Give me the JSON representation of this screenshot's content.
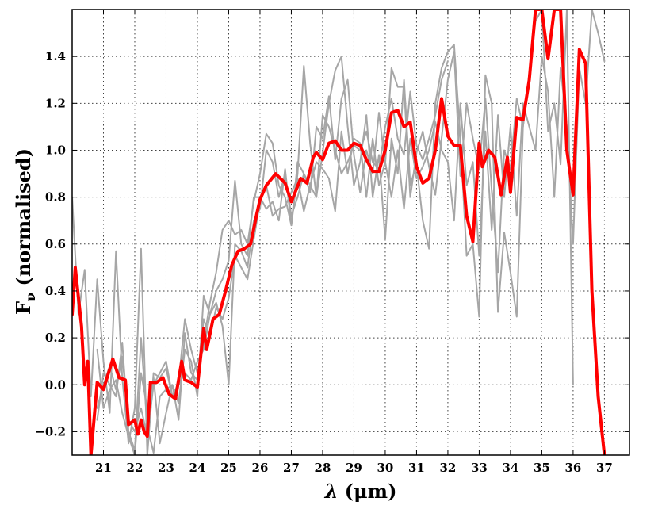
{
  "chart_data": {
    "type": "line",
    "xlabel_symbol": "λ",
    "xlabel_unit": "(μm)",
    "ylabel_main": "F",
    "ylabel_sub": "ν",
    "ylabel_rest": " (normalised)",
    "xlim": [
      20.0,
      37.8
    ],
    "ylim": [
      -0.3,
      1.6
    ],
    "xticks": [
      21,
      22,
      23,
      24,
      25,
      26,
      27,
      28,
      29,
      30,
      31,
      32,
      33,
      34,
      35,
      36,
      37
    ],
    "yticks": [
      -0.2,
      0.0,
      0.2,
      0.4,
      0.6,
      0.8,
      1.0,
      1.2,
      1.4
    ],
    "ytick_labels": [
      "−0.2",
      "0.0",
      "0.2",
      "0.4",
      "0.6",
      "0.8",
      "1.0",
      "1.2",
      "1.4"
    ],
    "grid": true,
    "colors": {
      "mean": "#ff0000",
      "individual": "#a6a6a6"
    },
    "series": [
      {
        "role": "mean",
        "x": [
          20.0,
          20.1,
          20.3,
          20.4,
          20.5,
          20.6,
          20.8,
          21.0,
          21.3,
          21.5,
          21.7,
          21.8,
          22.0,
          22.1,
          22.2,
          22.3,
          22.4,
          22.5,
          22.7,
          22.9,
          23.1,
          23.3,
          23.5,
          23.6,
          23.8,
          24.0,
          24.2,
          24.3,
          24.5,
          24.7,
          24.9,
          25.1,
          25.3,
          25.5,
          25.7,
          25.9,
          26.0,
          26.2,
          26.5,
          26.8,
          27.0,
          27.3,
          27.5,
          27.7,
          27.8,
          28.0,
          28.2,
          28.4,
          28.6,
          28.8,
          29.0,
          29.2,
          29.4,
          29.6,
          29.8,
          30.0,
          30.2,
          30.4,
          30.6,
          30.8,
          31.0,
          31.2,
          31.4,
          31.6,
          31.8,
          32.0,
          32.2,
          32.4,
          32.6,
          32.8,
          33.0,
          33.1,
          33.3,
          33.5,
          33.7,
          33.9,
          34.0,
          34.2,
          34.4,
          34.6,
          34.8,
          35.0,
          35.2,
          35.4,
          35.6,
          35.8,
          36.0,
          36.2,
          36.4,
          36.6,
          36.8,
          37.0
        ],
        "y": [
          0.3,
          0.5,
          0.25,
          0.0,
          0.1,
          -0.3,
          0.01,
          -0.02,
          0.11,
          0.03,
          0.02,
          -0.17,
          -0.15,
          -0.21,
          -0.15,
          -0.2,
          -0.22,
          0.01,
          0.01,
          0.03,
          -0.04,
          -0.06,
          0.1,
          0.02,
          0.01,
          -0.01,
          0.24,
          0.15,
          0.28,
          0.3,
          0.4,
          0.51,
          0.57,
          0.58,
          0.6,
          0.73,
          0.79,
          0.85,
          0.9,
          0.86,
          0.78,
          0.88,
          0.86,
          0.97,
          0.99,
          0.96,
          1.03,
          1.04,
          1.0,
          1.0,
          1.03,
          1.02,
          0.96,
          0.91,
          0.91,
          1.0,
          1.16,
          1.17,
          1.1,
          1.12,
          0.93,
          0.86,
          0.88,
          1.0,
          1.22,
          1.06,
          1.02,
          1.02,
          0.72,
          0.61,
          1.03,
          0.93,
          1.0,
          0.97,
          0.81,
          0.97,
          0.82,
          1.14,
          1.13,
          1.3,
          1.6,
          1.6,
          1.39,
          1.6,
          1.6,
          1.0,
          0.81,
          1.43,
          1.37,
          0.4,
          -0.05,
          -0.3
        ]
      },
      {
        "role": "individual",
        "x": [
          20.0,
          20.2,
          20.4,
          20.6,
          20.8,
          21.0,
          21.2,
          21.4,
          21.6,
          21.8,
          22.0,
          22.2,
          22.4,
          22.6,
          22.8,
          23.0,
          23.2,
          23.4,
          23.6,
          23.8,
          24.0,
          24.2,
          24.4,
          24.6,
          24.8,
          25.0,
          25.2,
          25.4,
          25.6,
          25.8,
          26.0,
          26.2,
          26.4,
          26.6,
          26.8,
          27.0,
          27.2,
          27.4,
          27.6,
          27.8,
          28.0,
          28.2,
          28.4,
          28.6,
          28.8,
          29.0,
          29.2,
          29.4,
          29.6,
          29.8,
          30.0,
          30.2,
          30.4,
          30.6,
          30.8,
          31.0,
          31.2,
          31.4,
          31.6,
          31.8,
          32.0,
          32.2,
          32.4,
          32.6,
          32.8,
          33.0,
          33.2,
          33.4,
          33.6,
          33.8,
          34.0,
          34.2,
          34.4,
          34.6,
          34.8,
          35.0,
          35.2,
          35.4,
          35.6,
          35.8,
          36.0
        ],
        "y": [
          0.8,
          0.3,
          0.49,
          -0.05,
          0.45,
          0.1,
          -0.12,
          0.57,
          0.03,
          -0.25,
          -0.1,
          0.58,
          -0.3,
          0.05,
          0.03,
          0.07,
          -0.05,
          0.01,
          0.28,
          0.15,
          0.05,
          0.18,
          0.35,
          0.48,
          0.66,
          0.7,
          0.64,
          0.66,
          0.6,
          0.78,
          0.9,
          1.07,
          1.03,
          0.85,
          0.8,
          0.68,
          0.9,
          1.36,
          1.03,
          0.8,
          0.99,
          1.2,
          1.34,
          1.4,
          1.1,
          0.85,
          0.95,
          1.15,
          0.8,
          0.98,
          0.62,
          1.05,
          0.9,
          1.3,
          0.85,
          0.94,
          0.7,
          0.58,
          1.2,
          1.35,
          1.42,
          1.45,
          1.05,
          0.55,
          0.6,
          0.29,
          1.32,
          1.2,
          0.31,
          0.65,
          0.48,
          0.29,
          1.1,
          1.3,
          1.6,
          1.6,
          1.08,
          1.2,
          0.94,
          1.6,
          0.0
        ]
      },
      {
        "role": "individual",
        "x": [
          20.8,
          21.0,
          21.2,
          21.4,
          21.6,
          21.8,
          22.0,
          22.2,
          22.4,
          22.6,
          22.8,
          23.0,
          23.2,
          23.4,
          23.6,
          23.8,
          24.0,
          24.2,
          24.4,
          24.6,
          24.8,
          25.0,
          25.2,
          25.4,
          25.6,
          25.8,
          26.0,
          26.2,
          26.4,
          26.6,
          26.8,
          27.0,
          27.2,
          27.4,
          27.6,
          27.8,
          28.0,
          28.2,
          28.4,
          28.6,
          28.8,
          29.0,
          29.2,
          29.4,
          29.6,
          29.8,
          30.0,
          30.2,
          30.4,
          30.6,
          30.8,
          31.0,
          31.2,
          31.4,
          31.6,
          31.8,
          32.0,
          32.2,
          32.4,
          32.6,
          32.8,
          33.0,
          33.2,
          33.4,
          33.6,
          33.8,
          34.0,
          34.2,
          34.4,
          34.6,
          34.8,
          35.0
        ],
        "y": [
          -0.15,
          0.05,
          0.0,
          -0.05,
          0.18,
          -0.2,
          -0.28,
          0.2,
          -0.18,
          -0.29,
          -0.05,
          -0.02,
          0.0,
          -0.08,
          0.15,
          0.1,
          -0.05,
          0.38,
          0.3,
          0.4,
          0.45,
          0.53,
          0.87,
          0.6,
          0.55,
          0.8,
          0.8,
          0.75,
          0.78,
          0.7,
          0.92,
          0.68,
          0.95,
          0.9,
          0.82,
          1.1,
          1.05,
          1.23,
          0.96,
          1.22,
          1.3,
          0.98,
          0.82,
          1.0,
          0.9,
          1.16,
          0.94,
          1.35,
          1.27,
          1.27,
          0.8,
          0.99,
          1.08,
          0.93,
          0.81,
          1.05,
          1.3,
          1.42,
          0.89,
          1.2,
          1.05,
          0.92,
          1.22,
          0.83,
          0.48,
          1.0,
          0.92,
          1.22,
          1.1,
          1.33,
          1.55,
          1.6
        ]
      },
      {
        "role": "individual",
        "x": [
          20.8,
          21.0,
          21.2,
          21.4,
          21.6,
          21.8,
          22.0,
          22.2,
          22.4,
          22.6,
          22.8,
          23.0,
          23.2,
          23.4,
          23.6,
          23.8,
          24.0,
          24.2,
          24.4,
          24.6,
          24.8,
          25.0,
          25.2,
          25.4,
          25.6,
          25.8,
          26.0,
          26.2,
          26.4,
          26.6,
          26.8,
          27.0,
          27.2,
          27.4,
          27.6,
          27.8,
          28.0,
          28.2,
          28.4,
          28.6,
          28.8,
          29.0,
          29.2,
          29.4,
          29.6,
          29.8,
          30.0,
          30.2,
          30.4,
          30.6,
          30.8,
          31.0,
          31.2,
          31.4,
          31.6,
          31.8,
          32.0,
          32.2,
          32.4,
          32.6,
          32.8,
          33.0,
          33.2,
          33.4,
          33.6,
          33.8,
          34.0,
          34.2,
          34.4,
          34.6,
          34.8,
          35.0,
          35.2,
          35.4,
          35.6,
          35.8,
          36.0,
          36.2,
          36.4,
          36.6,
          36.8,
          37.0
        ],
        "y": [
          0.15,
          -0.1,
          -0.02,
          0.02,
          -0.12,
          -0.22,
          -0.3,
          0.05,
          -0.1,
          0.03,
          -0.25,
          -0.12,
          0.0,
          -0.15,
          0.22,
          0.05,
          0.02,
          0.28,
          0.2,
          0.33,
          0.28,
          0.37,
          0.55,
          0.5,
          0.45,
          0.62,
          0.78,
          0.85,
          0.72,
          0.75,
          0.76,
          0.82,
          0.88,
          0.74,
          0.85,
          0.95,
          0.92,
          0.88,
          0.74,
          1.08,
          0.9,
          1.05,
          1.03,
          0.8,
          1.05,
          0.85,
          0.95,
          0.8,
          1.0,
          0.75,
          1.05,
          0.88,
          0.93,
          1.0,
          1.12,
          1.0,
          0.95,
          0.7,
          1.2,
          0.85,
          0.95,
          0.55,
          1.08,
          0.66,
          1.15,
          0.8,
          1.1,
          0.72,
          1.2,
          1.1,
          1.0,
          1.4,
          1.25,
          0.8,
          1.35,
          1.1,
          0.6,
          1.35,
          1.2,
          1.6,
          1.5,
          1.38
        ]
      },
      {
        "role": "individual",
        "x": [
          20.8,
          21.0,
          21.2,
          21.4,
          21.6,
          21.8,
          22.0,
          22.2,
          22.4,
          22.6,
          22.8,
          23.0,
          23.2,
          23.4,
          23.6,
          23.8,
          24.0,
          24.2,
          24.4,
          24.6,
          24.8,
          25.0,
          25.2,
          25.4,
          25.6,
          25.8,
          26.0,
          26.2,
          26.4,
          26.6,
          26.8,
          27.0,
          27.2,
          27.4,
          27.6,
          27.8,
          28.0,
          28.2,
          28.4,
          28.6,
          28.8,
          29.0,
          29.2,
          29.4,
          29.6,
          29.8,
          30.0,
          30.2,
          30.4,
          30.6,
          30.8,
          31.0,
          31.2,
          31.4,
          31.6,
          31.8,
          32.0
        ],
        "y": [
          -0.1,
          0.0,
          0.08,
          -0.02,
          0.12,
          -0.15,
          -0.2,
          -0.1,
          -0.22,
          0.0,
          0.05,
          0.1,
          -0.05,
          0.0,
          0.05,
          0.02,
          0.1,
          0.15,
          0.3,
          0.35,
          0.25,
          0.0,
          0.6,
          0.57,
          0.5,
          0.7,
          0.75,
          1.0,
          0.95,
          0.8,
          0.9,
          0.72,
          0.8,
          0.9,
          0.85,
          0.8,
          1.15,
          1.1,
          1.0,
          0.9,
          0.95,
          1.02,
          1.0,
          1.08,
          0.95,
          0.92,
          1.1,
          1.22,
          1.05,
          0.98,
          1.25,
          1.02,
          0.96,
          1.05,
          1.15,
          1.3,
          1.38
        ]
      }
    ]
  }
}
